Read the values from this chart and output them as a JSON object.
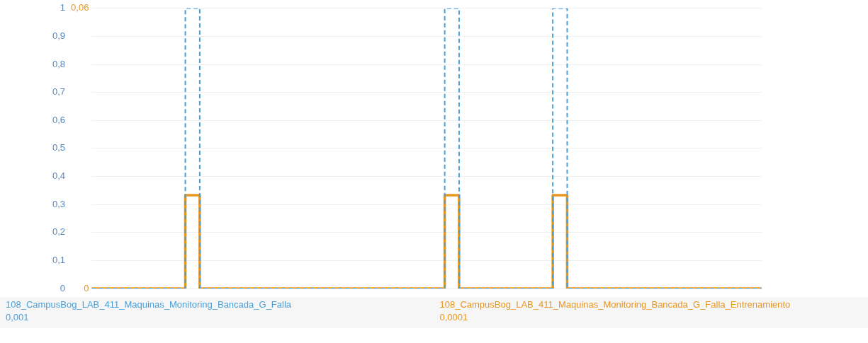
{
  "chart_data": {
    "type": "step",
    "categories": [
      null,
      null,
      null,
      null,
      null,
      null,
      null,
      null,
      null,
      null,
      null,
      null,
      null,
      null,
      null,
      null,
      null,
      null,
      null,
      null,
      null,
      null,
      null,
      null,
      null,
      null,
      null,
      null,
      null,
      null,
      null,
      null,
      null,
      null,
      null,
      null,
      null,
      null,
      null,
      null,
      null,
      null,
      null,
      null,
      null,
      null,
      null,
      null,
      null,
      null,
      null,
      null,
      null,
      null,
      null,
      null,
      null,
      null,
      null,
      null,
      null,
      null,
      null,
      null,
      null,
      null,
      null,
      null,
      null,
      null,
      null,
      null,
      null,
      null,
      null,
      null,
      null,
      null,
      null,
      null,
      null,
      null,
      null,
      null,
      null,
      null,
      null,
      null,
      null,
      null,
      null,
      null,
      null,
      null
    ],
    "series": [
      {
        "name": "108_CampusBog_LAB_411_Maquinas_Monitoring_Bancada_G_Falla_Entrenamiento",
        "color": "#e8961e",
        "axis": "y2",
        "line_style": "solid",
        "values": [
          0,
          0,
          0,
          0,
          0,
          0,
          0,
          0,
          0,
          0,
          0,
          0,
          0,
          0,
          0.02,
          0.02,
          0,
          0,
          0,
          0,
          0,
          0,
          0,
          0,
          0,
          0,
          0,
          0,
          0,
          0,
          0,
          0,
          0,
          0,
          0,
          0,
          0,
          0,
          0,
          0,
          0,
          0,
          0,
          0,
          0,
          0,
          0,
          0,
          0,
          0,
          0.02,
          0.02,
          0,
          0,
          0,
          0,
          0,
          0,
          0,
          0,
          0,
          0,
          0,
          0,
          0,
          0.02,
          0.02,
          0,
          0,
          0,
          0,
          0,
          0,
          0,
          0,
          0,
          0,
          0,
          0,
          0,
          0,
          0,
          0,
          0,
          0,
          0,
          0,
          0,
          0,
          0,
          0,
          0,
          0,
          0
        ]
      },
      {
        "name": "108_CampusBog_LAB_411_Maquinas_Monitoring_Bancada_G_Falla",
        "color": "#4a9fd8",
        "axis": "y",
        "line_style": "dashed",
        "values": [
          0,
          0,
          0,
          0,
          0,
          0,
          0,
          0,
          0,
          0,
          0,
          0,
          0,
          0,
          1,
          1,
          0,
          0,
          0,
          0,
          0,
          0,
          0,
          0,
          0,
          0,
          0,
          0,
          0,
          0,
          0,
          0,
          0,
          0,
          0,
          0,
          0,
          0,
          0,
          0,
          0,
          0,
          0,
          0,
          0,
          0,
          0,
          0,
          0,
          0,
          1,
          1,
          0,
          0,
          0,
          0,
          0,
          0,
          0,
          0,
          0,
          0,
          0,
          0,
          0,
          1,
          1,
          0,
          0,
          0,
          0,
          0,
          0,
          0,
          0,
          0,
          0,
          0,
          0,
          0,
          0,
          0,
          0,
          0,
          0,
          0,
          0,
          0,
          0,
          0,
          0,
          0,
          0,
          0
        ]
      }
    ],
    "ylim": [
      0,
      1
    ],
    "yticks": [
      {
        "value": 0,
        "label": "0"
      },
      {
        "value": 0.1,
        "label": "0,1"
      },
      {
        "value": 0.2,
        "label": "0,2"
      },
      {
        "value": 0.3,
        "label": "0,3"
      },
      {
        "value": 0.4,
        "label": "0,4"
      },
      {
        "value": 0.5,
        "label": "0,5"
      },
      {
        "value": 0.6,
        "label": "0,6"
      },
      {
        "value": 0.7,
        "label": "0,7"
      },
      {
        "value": 0.8,
        "label": "0,8"
      },
      {
        "value": 0.9,
        "label": "0,9"
      },
      {
        "value": 1,
        "label": "1"
      }
    ],
    "y2lim": [
      0,
      0.06
    ],
    "y2ticks": [
      {
        "value": 0,
        "label": "0"
      },
      {
        "value": 0.06,
        "label": "0,06"
      }
    ],
    "grid": "y",
    "legend": "bottom",
    "tick_labels": "y",
    "annotations": [
      "0,0001",
      "0,001"
    ]
  }
}
